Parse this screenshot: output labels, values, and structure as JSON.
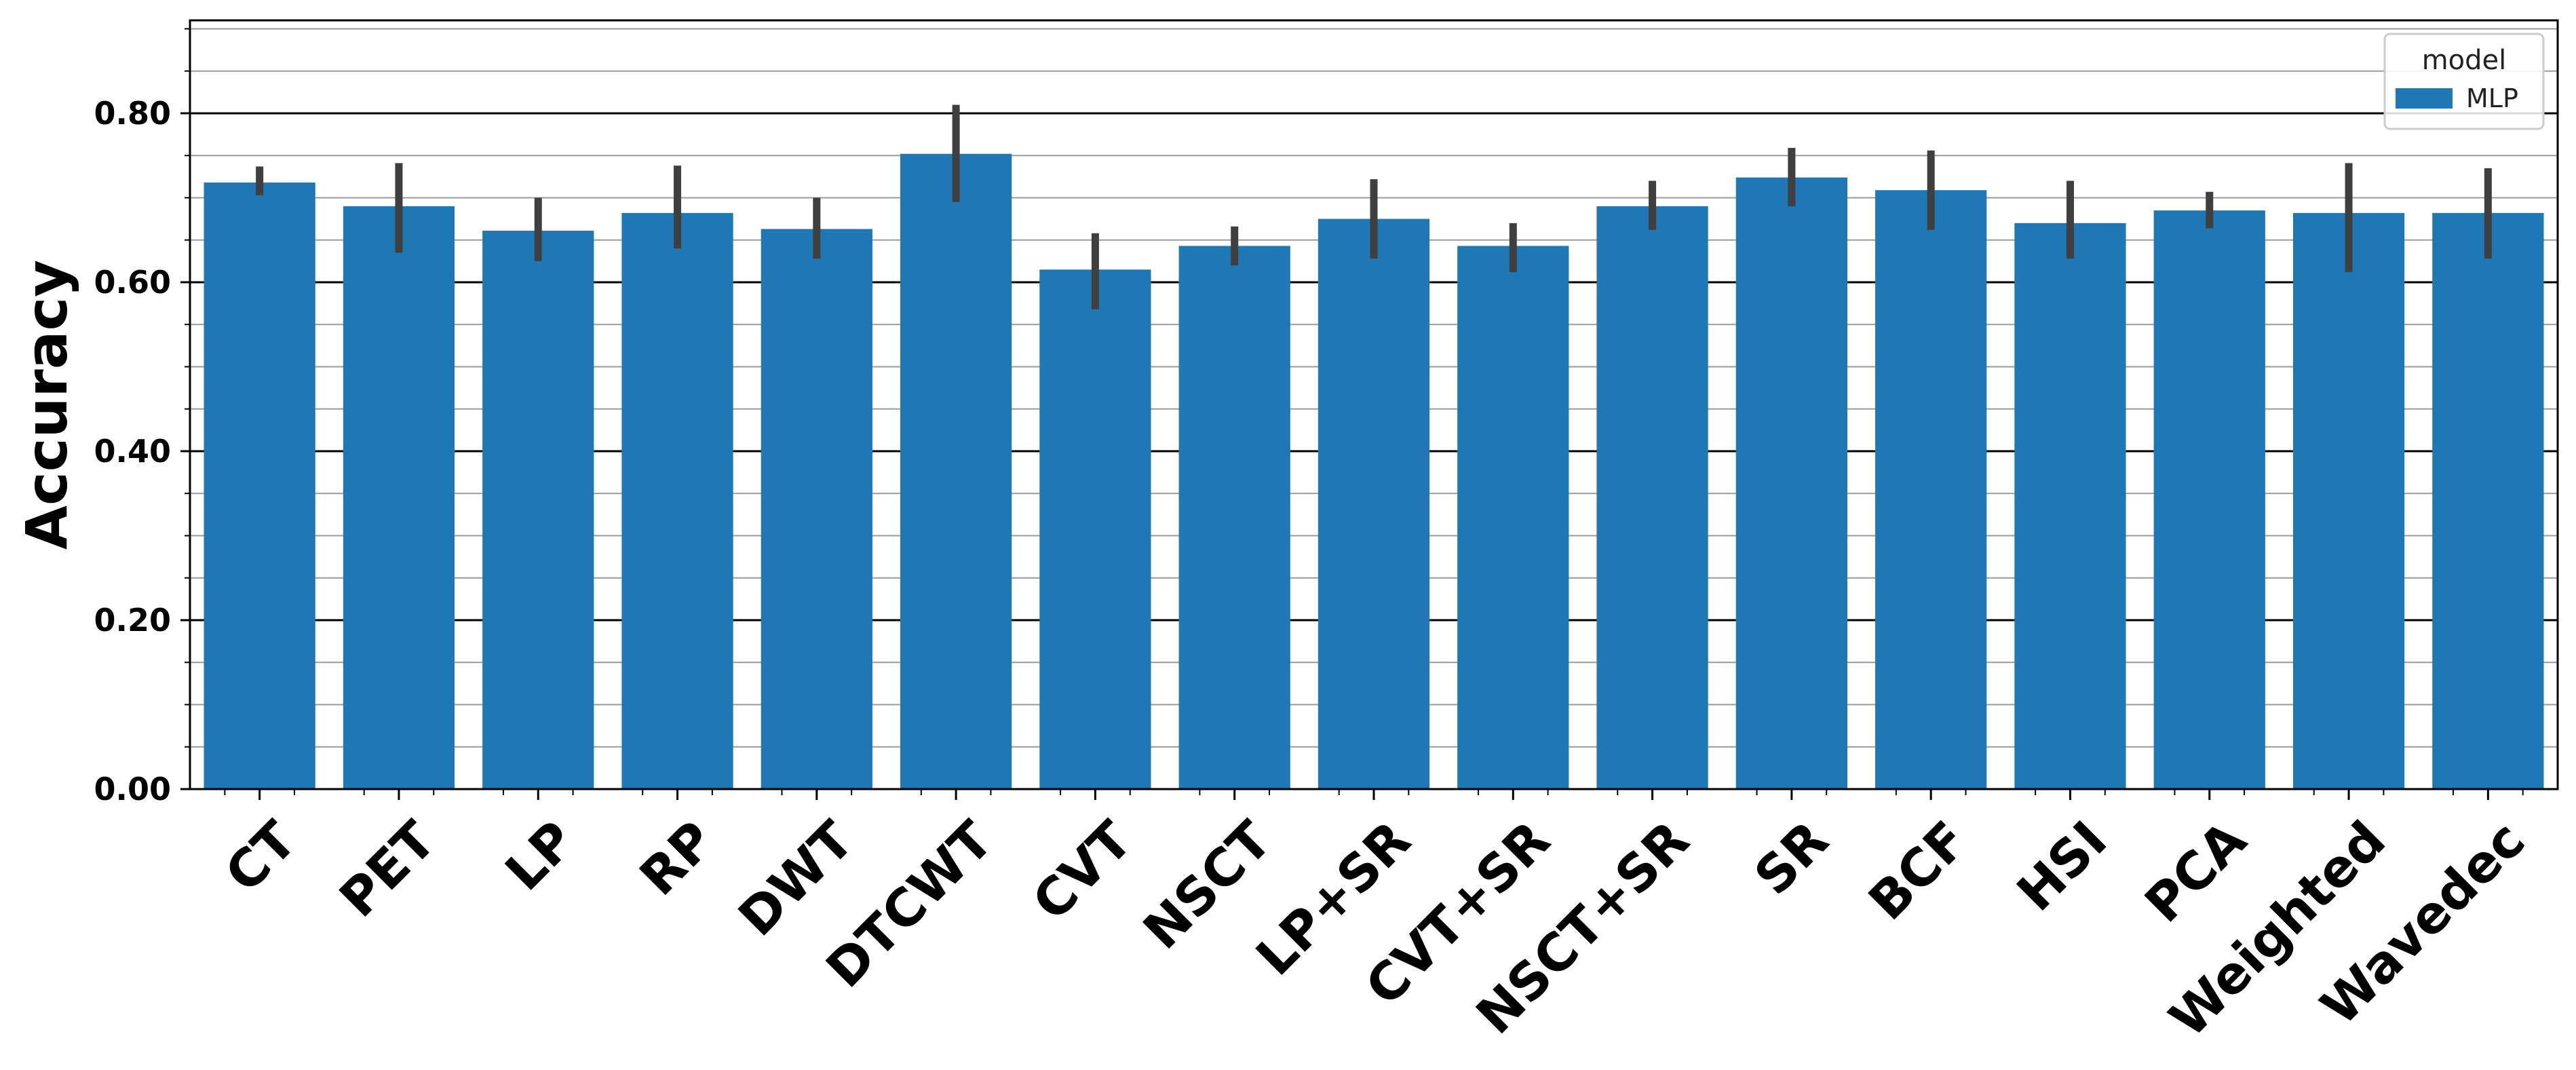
{
  "chart_data": {
    "type": "bar",
    "title": "",
    "xlabel": "",
    "ylabel": "Accuracy",
    "ylim": [
      0,
      0.91
    ],
    "yticks": [
      "0.00",
      "0.20",
      "0.40",
      "0.60",
      "0.80"
    ],
    "grid": true,
    "legend": {
      "title": "model",
      "placement": "top-right"
    },
    "categories": [
      "CT",
      "PET",
      "LP",
      "RP",
      "DWT",
      "DTCWT",
      "CVT",
      "NSCT",
      "LP+SR",
      "CVT+SR",
      "NSCT+SR",
      "SR",
      "BCF",
      "HSI",
      "PCA",
      "Weighted",
      "Wavedec"
    ],
    "series": [
      {
        "name": "MLP",
        "color": "#1f77b4",
        "values": [
          0.718,
          0.69,
          0.661,
          0.682,
          0.663,
          0.752,
          0.615,
          0.643,
          0.675,
          0.643,
          0.69,
          0.724,
          0.709,
          0.67,
          0.685,
          0.682,
          0.682
        ],
        "err_low": [
          0.703,
          0.635,
          0.625,
          0.64,
          0.628,
          0.695,
          0.568,
          0.62,
          0.628,
          0.612,
          0.662,
          0.69,
          0.662,
          0.628,
          0.664,
          0.612,
          0.628
        ],
        "err_high": [
          0.737,
          0.741,
          0.7,
          0.738,
          0.7,
          0.81,
          0.658,
          0.666,
          0.722,
          0.67,
          0.72,
          0.759,
          0.756,
          0.72,
          0.707,
          0.741,
          0.735
        ]
      }
    ]
  }
}
